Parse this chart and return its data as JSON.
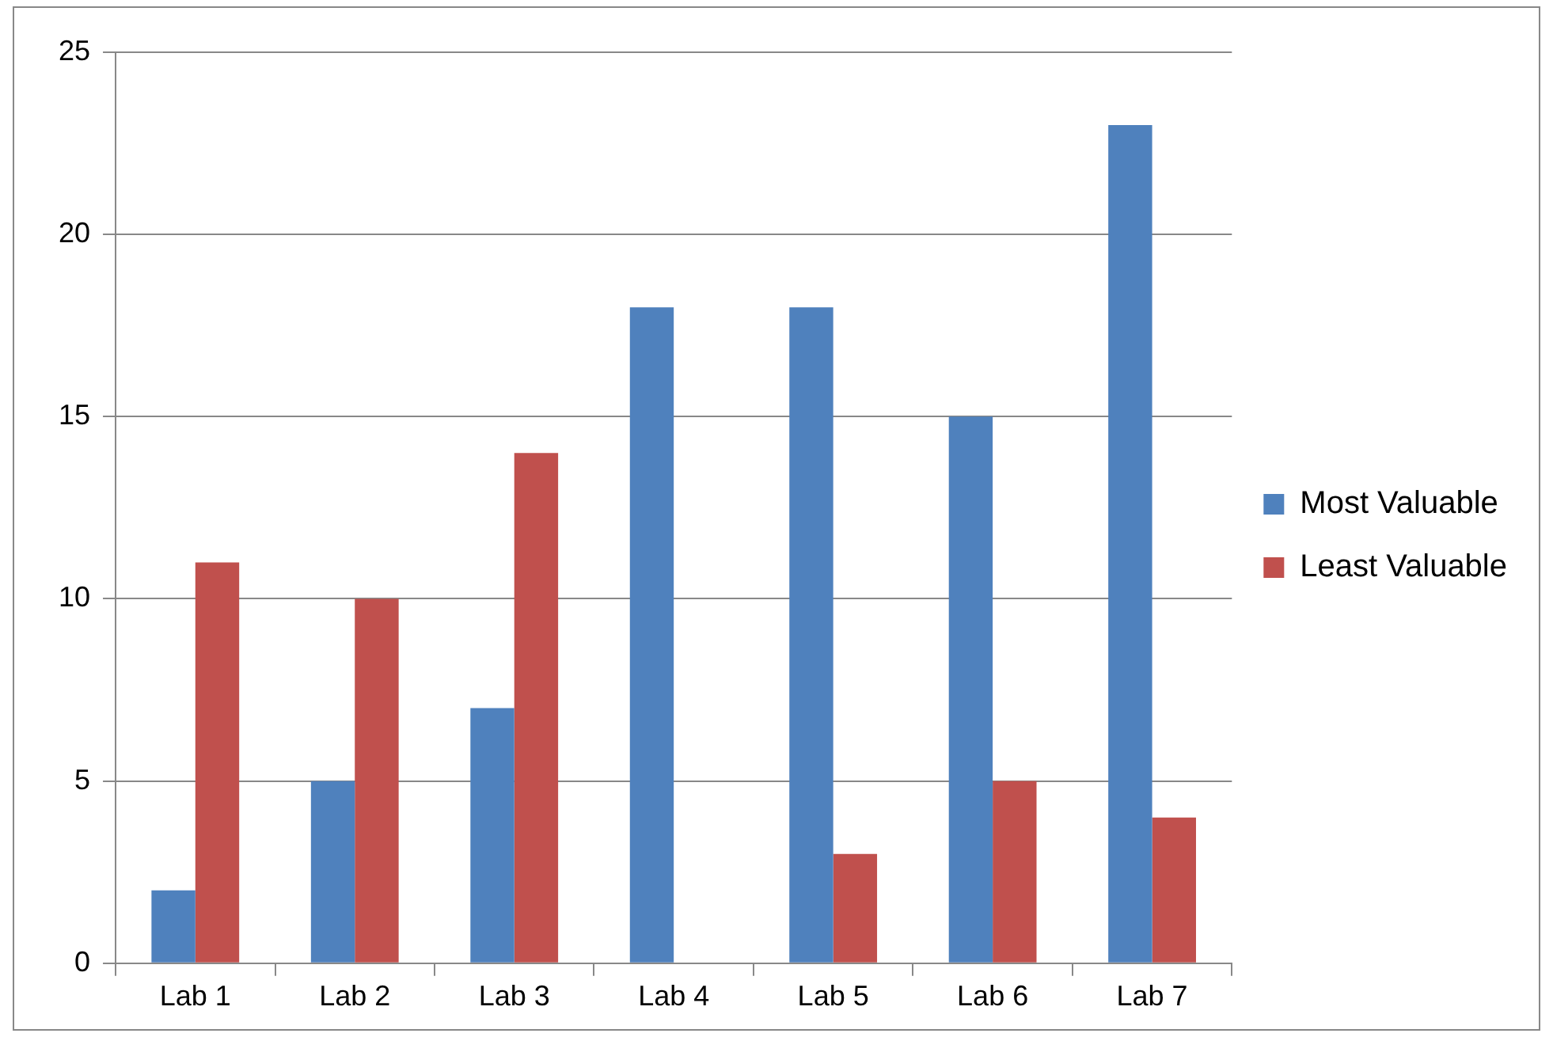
{
  "chart_data": {
    "type": "bar",
    "categories": [
      "Lab 1",
      "Lab 2",
      "Lab 3",
      "Lab 4",
      "Lab 5",
      "Lab 6",
      "Lab 7"
    ],
    "series": [
      {
        "name": "Most Valuable",
        "color": "#4f81bd",
        "values": [
          2,
          5,
          7,
          18,
          18,
          15,
          23
        ]
      },
      {
        "name": "Least Valuable",
        "color": "#c0504d",
        "values": [
          11,
          10,
          14,
          0,
          3,
          5,
          4
        ]
      }
    ],
    "ylim": [
      0,
      25
    ],
    "yticks": [
      0,
      5,
      10,
      15,
      20,
      25
    ],
    "grid": "y",
    "legend": "right"
  }
}
